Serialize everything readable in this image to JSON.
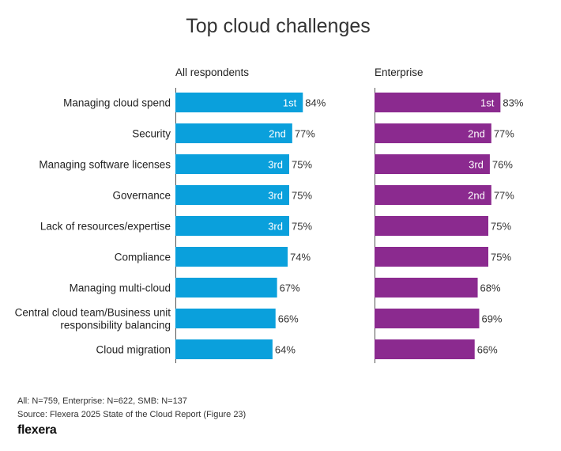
{
  "chart_data": {
    "type": "bar",
    "orientation": "horizontal",
    "title": "Top cloud challenges",
    "categories": [
      "Managing cloud spend",
      "Security",
      "Managing software licenses",
      "Governance",
      "Lack of resources/expertise",
      "Compliance",
      "Managing multi-cloud",
      "Central cloud team/Business unit responsibility balancing",
      "Cloud migration"
    ],
    "category_lines": [
      [
        "Managing cloud spend"
      ],
      [
        "Security"
      ],
      [
        "Managing software licenses"
      ],
      [
        "Governance"
      ],
      [
        "Lack of resources/expertise"
      ],
      [
        "Compliance"
      ],
      [
        "Managing multi-cloud"
      ],
      [
        "Central cloud team/Business unit",
        "responsibility balancing"
      ],
      [
        "Cloud migration"
      ]
    ],
    "xlim": [
      0,
      100
    ],
    "value_suffix": "%",
    "series": [
      {
        "name": "All respondents",
        "color": "#0aa0dc",
        "values": [
          84,
          77,
          75,
          75,
          75,
          74,
          67,
          66,
          64
        ],
        "ranks": [
          "1st",
          "2nd",
          "3rd",
          "3rd",
          "3rd",
          "",
          "",
          "",
          ""
        ]
      },
      {
        "name": "Enterprise",
        "color": "#8b2a8f",
        "values": [
          83,
          77,
          76,
          77,
          75,
          75,
          68,
          69,
          66
        ],
        "ranks": [
          "1st",
          "2nd",
          "3rd",
          "2nd",
          "",
          "",
          "",
          "",
          ""
        ]
      }
    ]
  },
  "footer": {
    "sample": "All: N=759, Enterprise: N=622, SMB: N=137",
    "source": "Source: Flexera 2025 State of the Cloud Report (Figure 23)",
    "logo": "flexera"
  }
}
